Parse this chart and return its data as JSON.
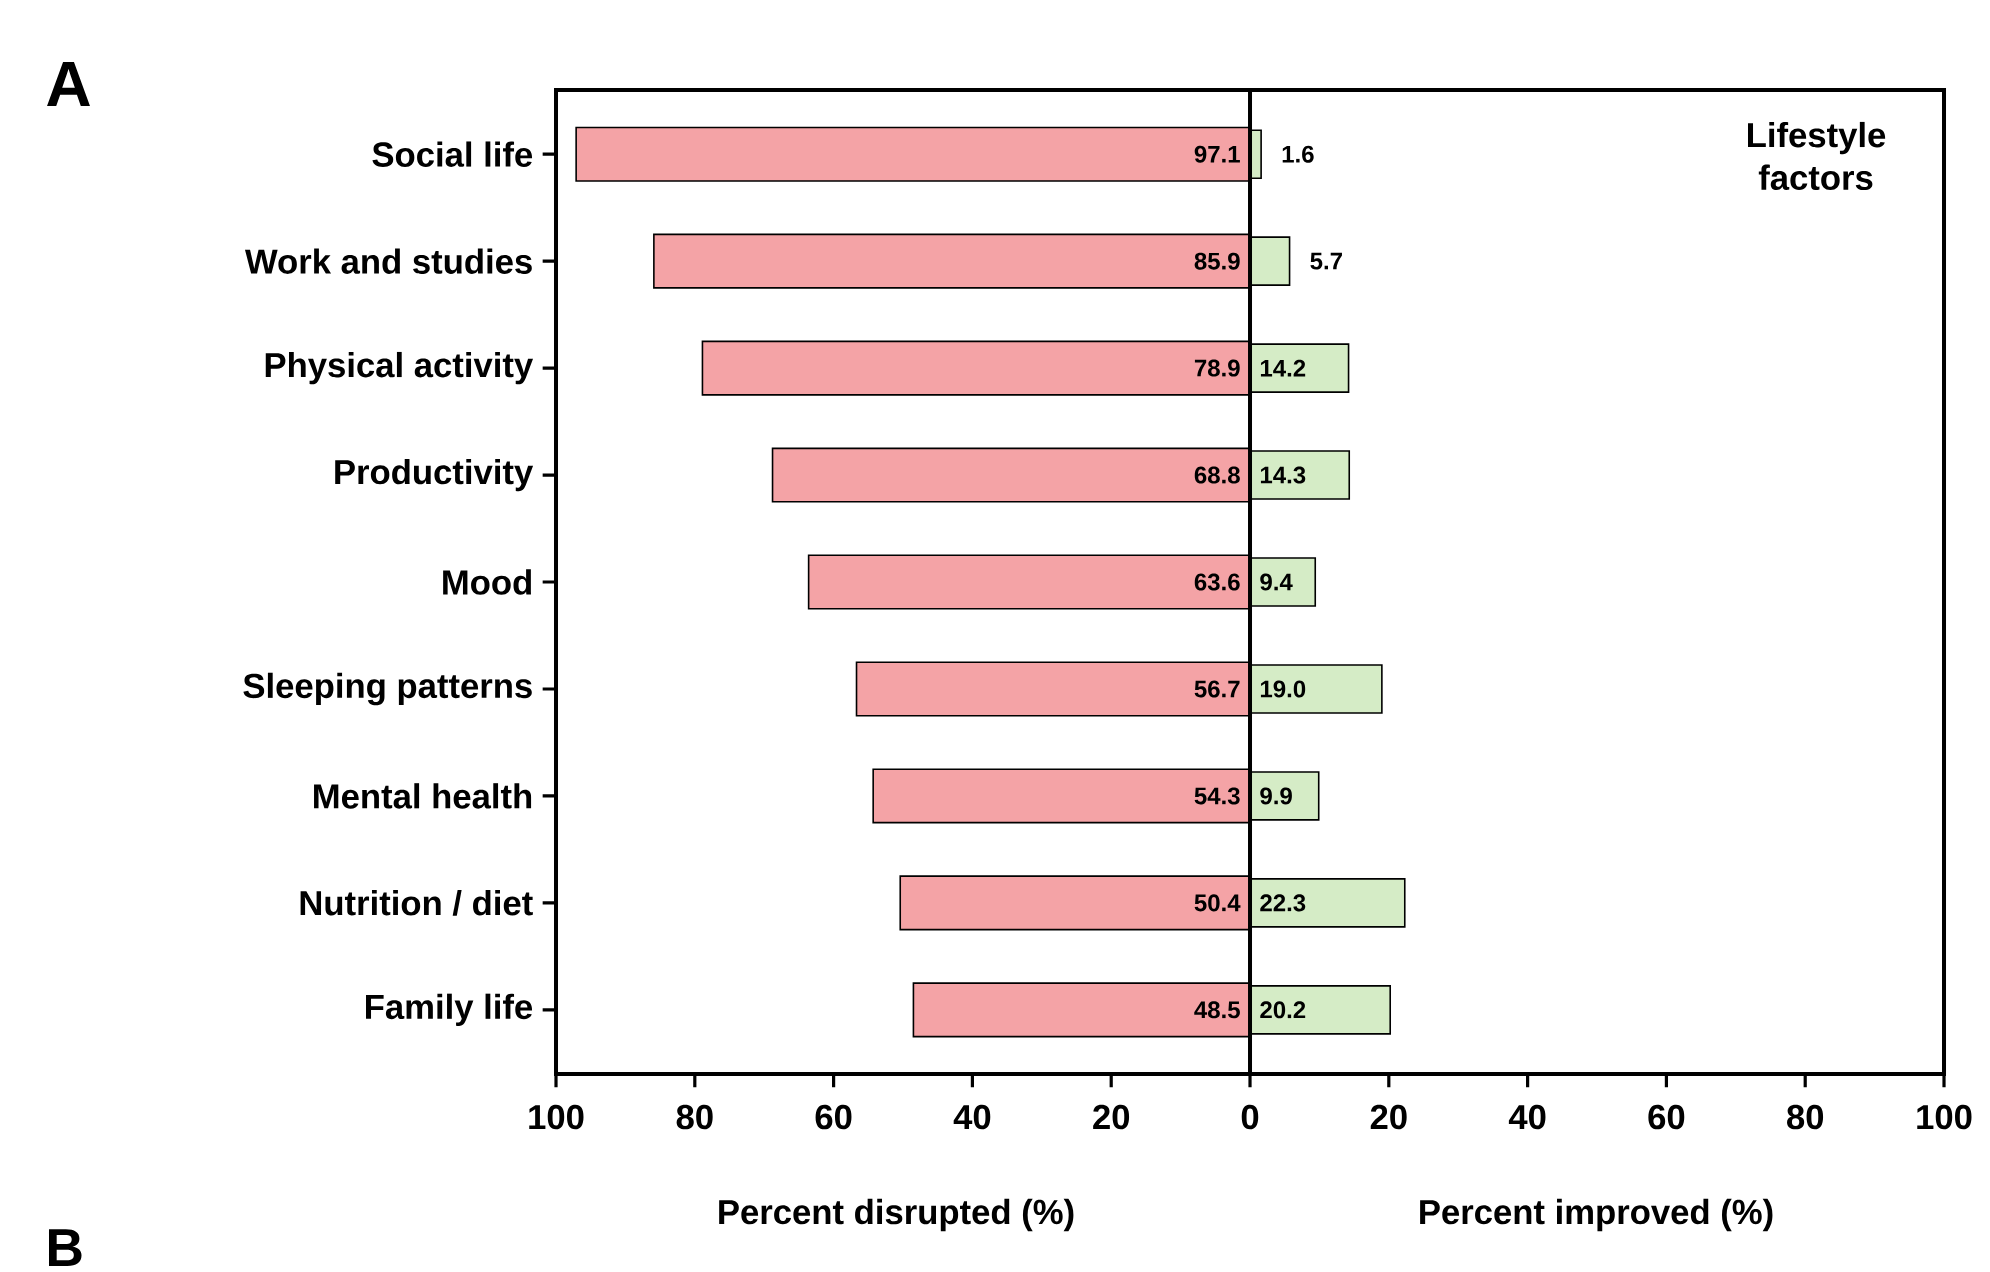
{
  "chart_data": {
    "type": "bar",
    "orientation": "horizontal",
    "categories": [
      "Social life",
      "Work and studies",
      "Physical activity",
      "Productivity",
      "Mood",
      "Sleeping patterns",
      "Mental health",
      "Nutrition / diet",
      "Family life"
    ],
    "series": [
      {
        "color": "#f4a3a6",
        "base": [
          -97.1,
          -85.9,
          -78.9,
          -68.8,
          -63.6,
          -56.7,
          -54.3,
          -50.4,
          -48.5
        ],
        "values": [
          97.1,
          85.9,
          78.9,
          68.8,
          63.6,
          56.7,
          54.3,
          50.4,
          48.5
        ],
        "value_labels": [
          "97.1",
          "85.9",
          "78.9",
          "68.8",
          "63.6",
          "56.7",
          "54.3",
          "50.4",
          "48.5"
        ]
      },
      {
        "color": "#d5ecc6",
        "values": [
          1.6,
          5.7,
          14.2,
          14.3,
          9.4,
          19.0,
          9.9,
          22.3,
          20.2
        ],
        "value_labels": [
          "1.6",
          "5.7",
          "14.2",
          "14.3",
          "9.4",
          "19.0",
          "9.9",
          "22.3",
          "20.2"
        ]
      }
    ],
    "xlim": [
      -100,
      100
    ],
    "xticks": [
      {
        "value": -100,
        "label": "100"
      },
      {
        "value": -80,
        "label": "80"
      },
      {
        "value": -60,
        "label": "60"
      },
      {
        "value": -40,
        "label": "40"
      },
      {
        "value": -20,
        "label": "20"
      },
      0,
      20,
      40,
      60,
      80,
      100
    ],
    "ref_lines": [
      {
        "axis": "x",
        "value": 0
      }
    ],
    "annotations": [
      "A",
      "Lifestyle factors",
      "Percent disrupted (%)",
      "Percent improved (%)",
      "B"
    ]
  }
}
